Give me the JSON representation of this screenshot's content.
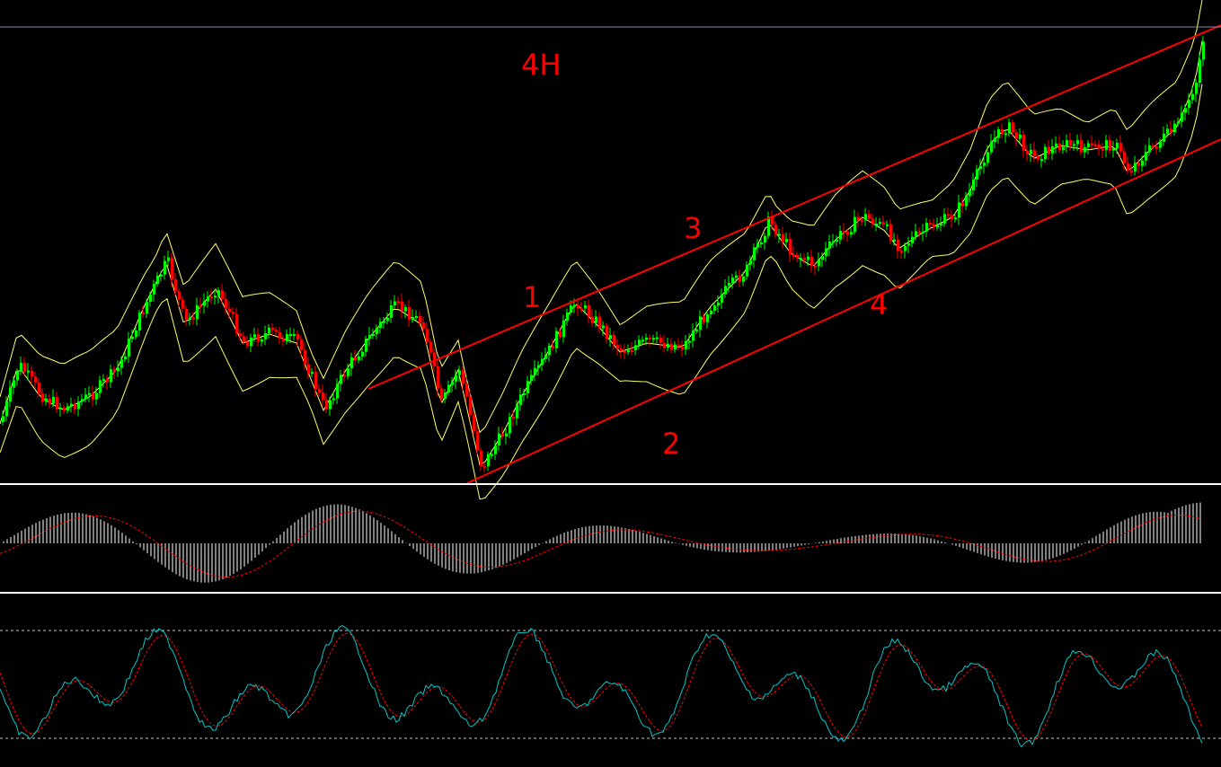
{
  "chart": {
    "timeframe_label": "4H",
    "channel_labels": [
      "1",
      "2",
      "3",
      "4"
    ],
    "colors": {
      "background": "#000000",
      "bull_candle": "#00ff00",
      "bear_candle": "#ff0000",
      "bollinger": "#ffff66",
      "trendline": "#ff0000",
      "separator": "#ffffff",
      "grid_line": "#7f8fa6",
      "macd_hist": "#ffffff",
      "macd_signal": "#ff0000",
      "stoch_main": "#00c8c8",
      "stoch_signal": "#ff0000",
      "stoch_level": "#c0c0c0"
    }
  }
}
